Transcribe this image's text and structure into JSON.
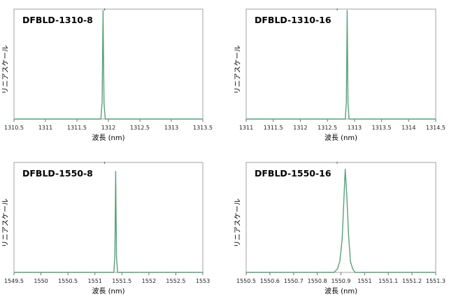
{
  "chart_data": [
    {
      "type": "line",
      "title": "DFBLD-1310-8",
      "xlabel": "波長 (nm)",
      "ylabel": "リニアスケール",
      "xlim": [
        1310.5,
        1313.5
      ],
      "xticks": [
        "1310.5",
        "1311",
        "1311.5",
        "1312",
        "1312.5",
        "1313",
        "1313.5"
      ],
      "ylim": [
        0,
        1
      ],
      "grid": false,
      "series": [
        {
          "x": [
            1310.5,
            1311.88,
            1311.9,
            1311.915,
            1311.93,
            1311.95,
            1313.5
          ],
          "y": [
            0,
            0,
            0.15,
            1.0,
            0.15,
            0,
            0
          ]
        }
      ],
      "colors": {
        "line": "#5aa07a"
      }
    },
    {
      "type": "line",
      "title": "DFBLD-1310-16",
      "xlabel": "波長 (nm)",
      "ylabel": "リニアスケール",
      "xlim": [
        1311,
        1314.5
      ],
      "xticks": [
        "1311",
        "1311.5",
        "1312",
        "1312.5",
        "1313",
        "1313.5",
        "1314",
        "1314.5"
      ],
      "ylim": [
        0,
        1
      ],
      "grid": false,
      "series": [
        {
          "x": [
            1311,
            1312.83,
            1312.85,
            1312.865,
            1312.88,
            1312.9,
            1314.5
          ],
          "y": [
            0,
            0,
            0.15,
            1.0,
            0.15,
            0,
            0
          ]
        }
      ],
      "colors": {
        "line": "#5aa07a"
      }
    },
    {
      "type": "line",
      "title": "DFBLD-1550-8",
      "xlabel": "波長 (nm)",
      "ylabel": "リニアスケール",
      "xlim": [
        1549.5,
        1553
      ],
      "xticks": [
        "1549.5",
        "1550",
        "1550.5",
        "1551",
        "1551.5",
        "1552",
        "1552.5",
        "1553"
      ],
      "ylim": [
        0,
        1
      ],
      "grid": false,
      "series": [
        {
          "x": [
            1549.5,
            1551.35,
            1551.37,
            1551.385,
            1551.4,
            1551.42,
            1553
          ],
          "y": [
            0,
            0,
            0.15,
            0.93,
            0.15,
            0,
            0
          ]
        }
      ],
      "colors": {
        "line": "#5aa07a"
      }
    },
    {
      "type": "line",
      "title": "DFBLD-1550-16",
      "xlabel": "波長 (nm)",
      "ylabel": "リニアスケール",
      "xlim": [
        1550.5,
        1551.3
      ],
      "xticks": [
        "1550.5",
        "1550.6",
        "1550.7",
        "1550.8",
        "1550.9",
        "1551",
        "1551.1",
        "1551.2",
        "1551.3"
      ],
      "ylim": [
        0,
        1
      ],
      "grid": false,
      "series": [
        {
          "x": [
            1550.5,
            1550.87,
            1550.885,
            1550.895,
            1550.905,
            1550.912,
            1550.918,
            1550.925,
            1550.932,
            1550.94,
            1550.95,
            1550.96,
            1551.3
          ],
          "y": [
            0,
            0,
            0.03,
            0.1,
            0.3,
            0.65,
            0.95,
            0.7,
            0.35,
            0.1,
            0.03,
            0,
            0
          ]
        }
      ],
      "colors": {
        "line": "#5aa07a"
      }
    }
  ]
}
